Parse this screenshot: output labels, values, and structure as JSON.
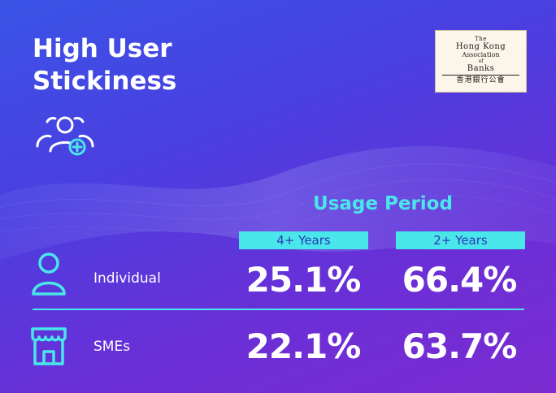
{
  "title": {
    "line1": "High User",
    "line2": "Stickiness"
  },
  "logo": {
    "line1": "The",
    "line2": "Hong Kong",
    "line3": "Association",
    "line4": "of",
    "line5": "Banks",
    "line6": "香港銀行公會"
  },
  "table": {
    "heading": "Usage Period",
    "columns": [
      "4+ Years",
      "2+ Years"
    ],
    "rows": [
      {
        "icon": "person-icon",
        "label": "Individual",
        "values": [
          "25.1%",
          "66.4%"
        ]
      },
      {
        "icon": "storefront-icon",
        "label": "SMEs",
        "values": [
          "22.1%",
          "63.7%"
        ]
      }
    ]
  },
  "colors": {
    "accent": "#49e6ea",
    "background_start": "#3a54e6",
    "background_end": "#7b2bd0"
  },
  "icons": {
    "header": "users-add-icon"
  }
}
